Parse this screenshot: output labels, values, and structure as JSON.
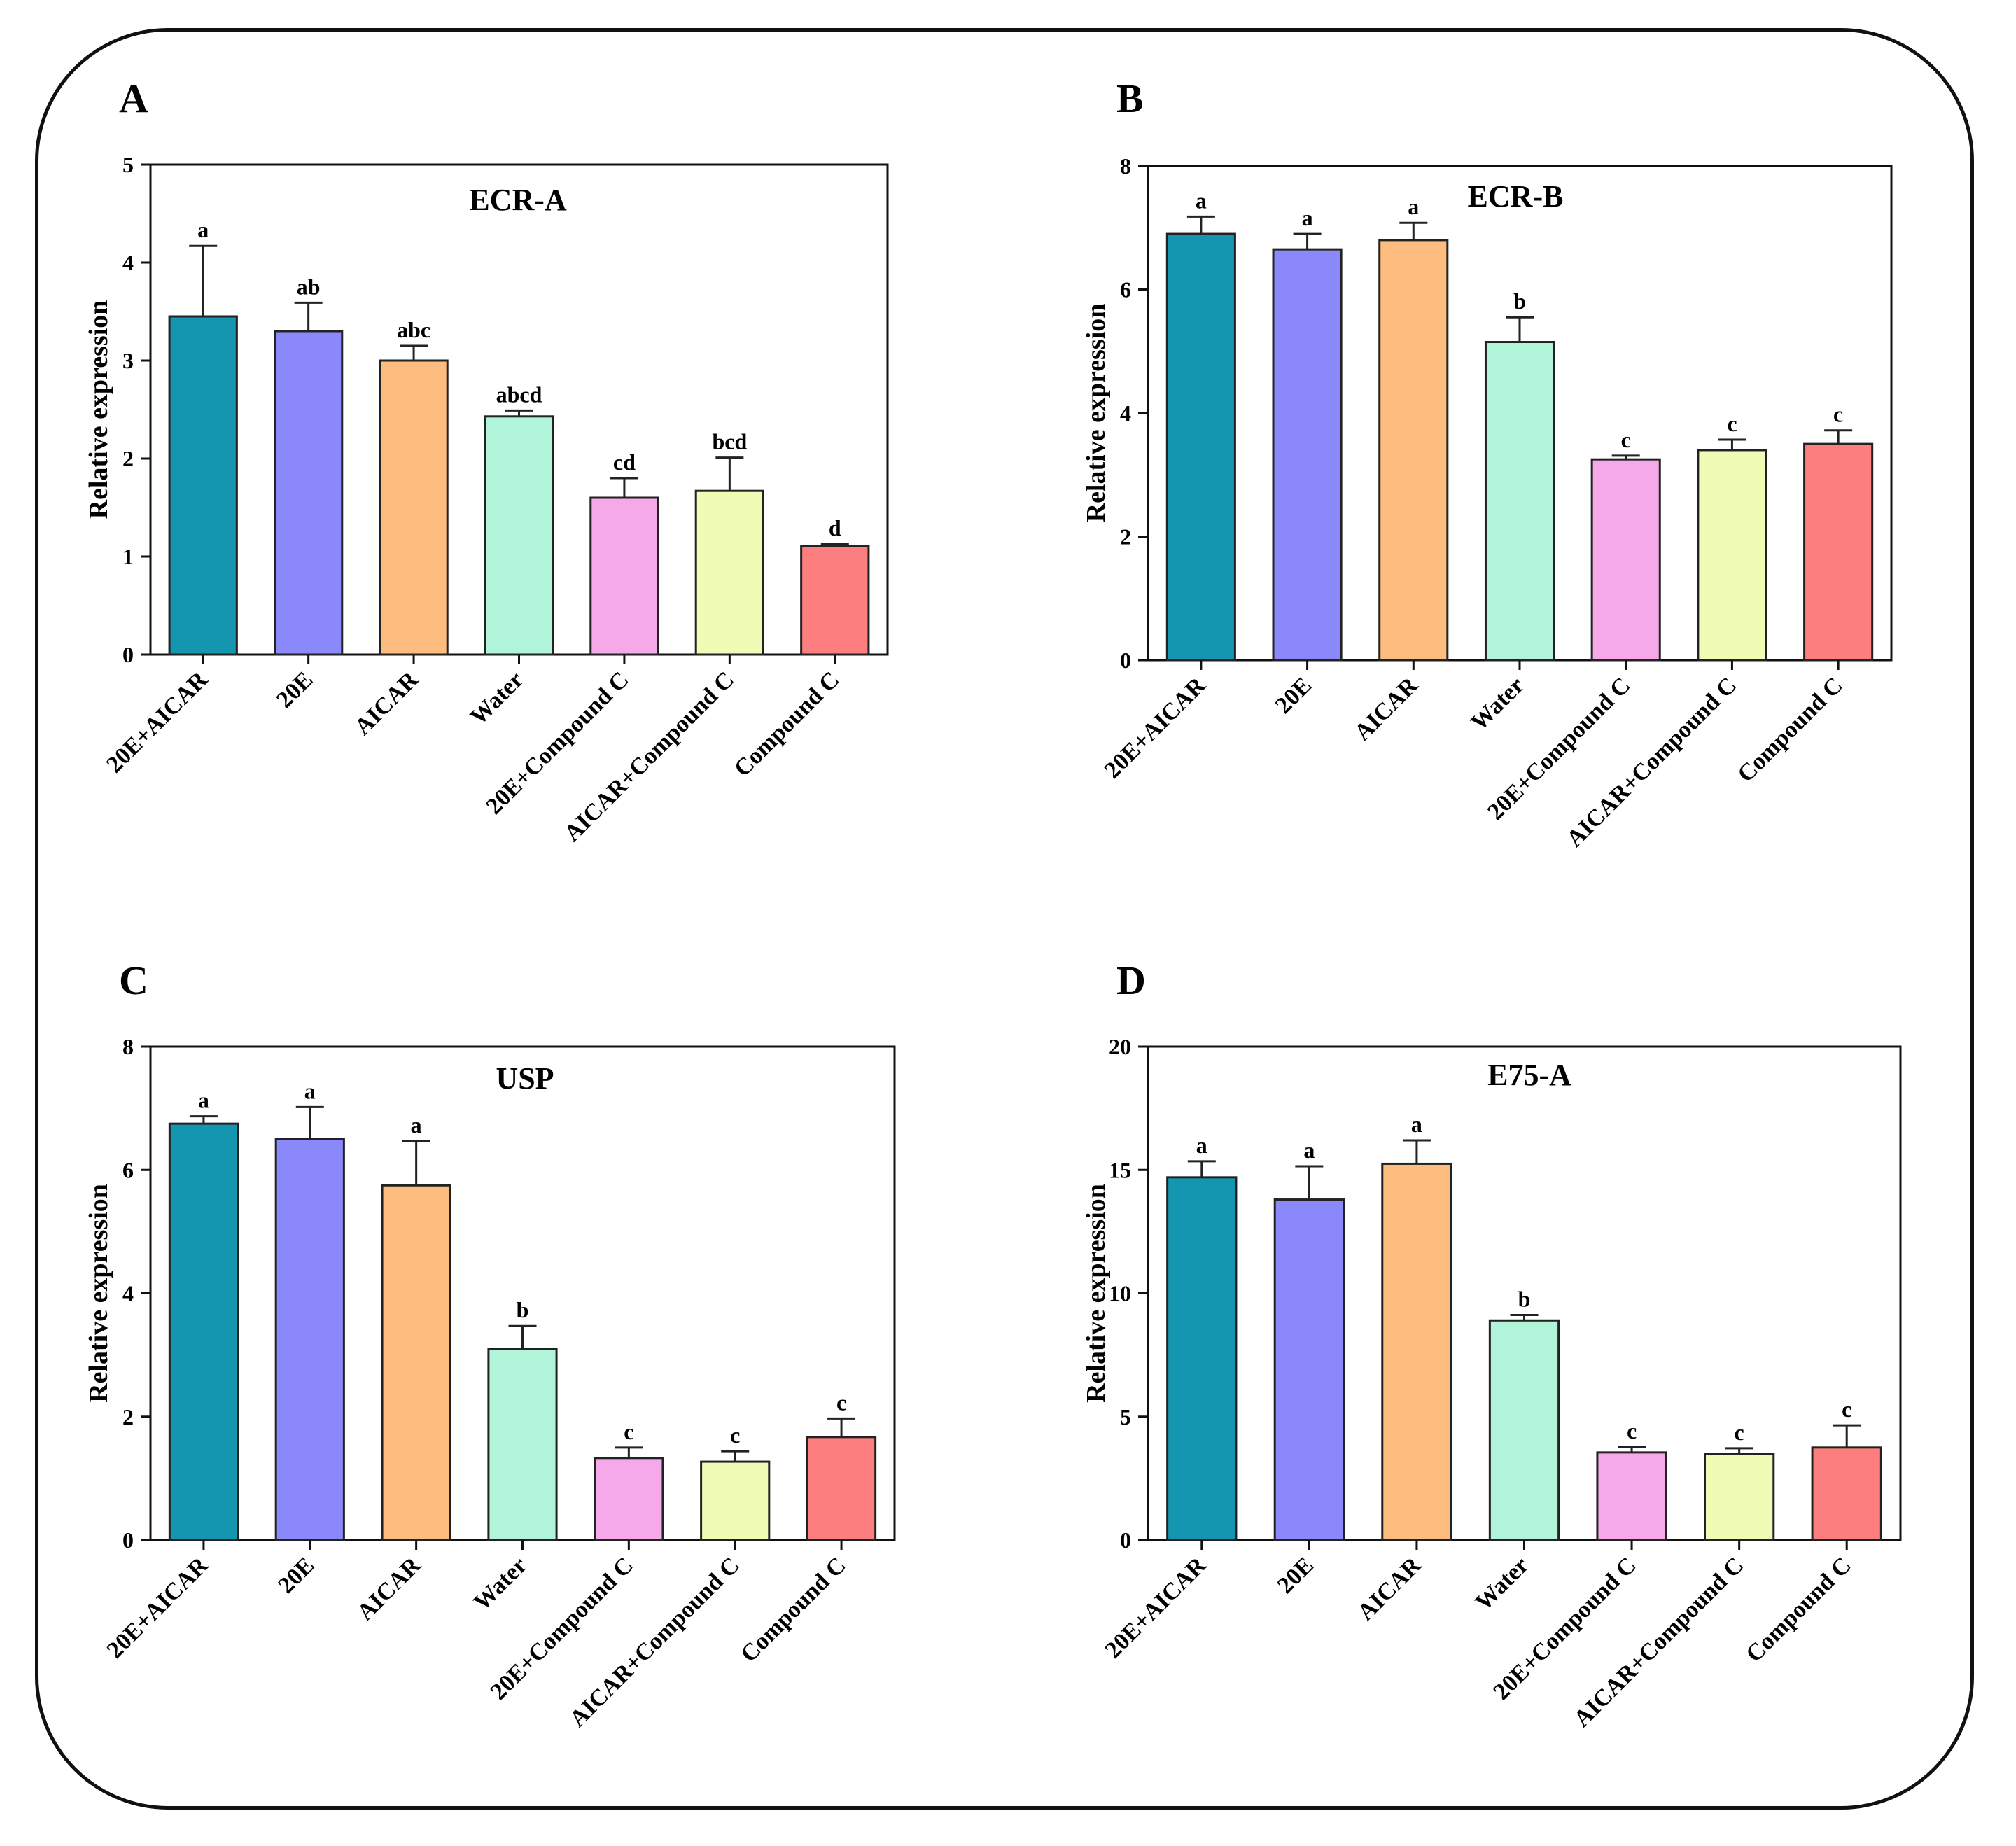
{
  "colors": [
    "#1495b0",
    "#8a88fa",
    "#fdbd7e",
    "#b0f5da",
    "#f5a9e8",
    "#f0fcb5",
    "#fc7e7e"
  ],
  "chart_data": [
    {
      "panel": "A",
      "type": "bar",
      "title": "ECR-A",
      "ylabel": "Relative expression",
      "ylim": [
        0,
        5
      ],
      "yticks": [
        0,
        1,
        2,
        3,
        4,
        5
      ],
      "categories": [
        "20E+AICAR",
        "20E",
        "AICAR",
        "Water",
        "20E+Compound C",
        "AICAR+Compound C",
        "Compound C"
      ],
      "values": [
        3.45,
        3.3,
        3.0,
        2.43,
        1.6,
        1.67,
        1.11
      ],
      "errors": [
        0.72,
        0.29,
        0.15,
        0.06,
        0.2,
        0.34,
        0.02
      ],
      "letters": [
        "a",
        "ab",
        "abc",
        "abcd",
        "cd",
        "bcd",
        "d"
      ]
    },
    {
      "panel": "B",
      "type": "bar",
      "title": "ECR-B",
      "ylabel": "Relative expression",
      "ylim": [
        0,
        8
      ],
      "yticks": [
        0,
        2,
        4,
        6,
        8
      ],
      "categories": [
        "20E+AICAR",
        "20E",
        "AICAR",
        "Water",
        "20E+Compound C",
        "AICAR+Compound C",
        "Compound C"
      ],
      "values": [
        6.9,
        6.65,
        6.8,
        5.15,
        3.25,
        3.4,
        3.5
      ],
      "errors": [
        0.28,
        0.25,
        0.28,
        0.4,
        0.06,
        0.17,
        0.22
      ],
      "letters": [
        "a",
        "a",
        "a",
        "b",
        "c",
        "c",
        "c"
      ]
    },
    {
      "panel": "C",
      "type": "bar",
      "title": "USP",
      "ylabel": "Relative expression",
      "ylim": [
        0,
        8
      ],
      "yticks": [
        0,
        2,
        4,
        6,
        8
      ],
      "categories": [
        "20E+AICAR",
        "20E",
        "AICAR",
        "Water",
        "20E+Compound C",
        "AICAR+Compound C",
        "Compound C"
      ],
      "values": [
        6.75,
        6.5,
        5.75,
        3.1,
        1.33,
        1.27,
        1.67
      ],
      "errors": [
        0.12,
        0.52,
        0.72,
        0.37,
        0.17,
        0.17,
        0.3
      ],
      "letters": [
        "a",
        "a",
        "a",
        "b",
        "c",
        "c",
        "c"
      ]
    },
    {
      "panel": "D",
      "type": "bar",
      "title": "E75-A",
      "ylabel": "Relative expression",
      "ylim": [
        0,
        20
      ],
      "yticks": [
        0,
        5,
        10,
        15,
        20
      ],
      "categories": [
        "20E+AICAR",
        "20E",
        "AICAR",
        "Water",
        "20E+Compound C",
        "AICAR+Compound C",
        "Compound C"
      ],
      "values": [
        14.7,
        13.8,
        15.25,
        8.9,
        3.55,
        3.5,
        3.75
      ],
      "errors": [
        0.65,
        1.35,
        0.95,
        0.22,
        0.22,
        0.22,
        0.9
      ],
      "letters": [
        "a",
        "a",
        "a",
        "b",
        "c",
        "c",
        "c"
      ]
    }
  ]
}
